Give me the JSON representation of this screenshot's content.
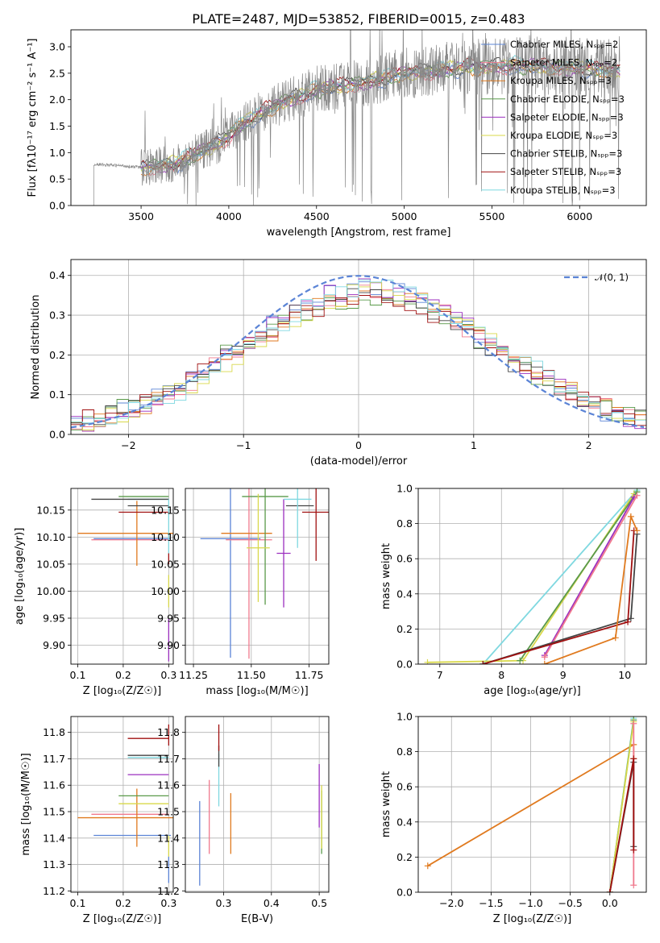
{
  "colors": {
    "chabrier_miles": "#5b84d6",
    "salpeter_miles": "#f07a8e",
    "kroupa_miles": "#e07a1f",
    "chabrier_elodie": "#5a9a4a",
    "salpeter_elodie": "#9b2fbf",
    "kroupa_elodie": "#d8d84a",
    "chabrier_stelib": "#444444",
    "salpeter_stelib": "#a01010",
    "kroupa_stelib": "#7fd8e0",
    "data": "#888888",
    "normal": "#5b84d6"
  },
  "chart_data": [
    {
      "id": "spectrum",
      "type": "line",
      "title": "PLATE=2487, MJD=53852, FIBERID=0015, z=0.483",
      "xlabel": "wavelength [Angstrom, rest frame]",
      "ylabel": "Flux [fλ10⁻¹⁷ erg cm⁻² s⁻¹ A⁻¹]",
      "xlim": [
        3100,
        6380
      ],
      "ylim": [
        0,
        3.32
      ],
      "xticks": [
        "3500",
        "4000",
        "4500",
        "5000",
        "5500",
        "6000"
      ],
      "yticks": [
        "0.0",
        "0.5",
        "1.0",
        "1.5",
        "2.0",
        "2.5",
        "3.0"
      ],
      "legend_position": "top-right",
      "legend": [
        {
          "label": "Chabrier MILES, Nₛₚₚ=2",
          "color": "chabrier_miles"
        },
        {
          "label": "Salpeter MILES, Nₛₚₚ=2",
          "color": "salpeter_miles"
        },
        {
          "label": "Kroupa MILES, Nₛₚₚ=3",
          "color": "kroupa_miles"
        },
        {
          "label": "Chabrier ELODIE, Nₛₚₚ=3",
          "color": "chabrier_elodie"
        },
        {
          "label": "Salpeter ELODIE, Nₛₚₚ=3",
          "color": "salpeter_elodie"
        },
        {
          "label": "Kroupa ELODIE, Nₛₚₚ=3",
          "color": "kroupa_elodie"
        },
        {
          "label": "Chabrier STELIB, Nₛₚₚ=3",
          "color": "chabrier_stelib"
        },
        {
          "label": "Salpeter STELIB, Nₛₚₚ=3",
          "color": "salpeter_stelib"
        },
        {
          "label": "Kroupa STELIB, Nₛₚₚ=3",
          "color": "kroupa_stelib"
        }
      ],
      "data_start": 3230,
      "data_end": 6230,
      "model_start": 3500,
      "model_end": 6230,
      "continuum": [
        [
          3230,
          0.78
        ],
        [
          3400,
          0.75
        ],
        [
          3500,
          0.72
        ],
        [
          3700,
          0.8
        ],
        [
          3950,
          1.2
        ],
        [
          4100,
          1.6
        ],
        [
          4300,
          1.95
        ],
        [
          4500,
          2.2
        ],
        [
          4800,
          2.35
        ],
        [
          5000,
          2.5
        ],
        [
          5300,
          2.6
        ],
        [
          5600,
          2.65
        ],
        [
          5900,
          2.62
        ],
        [
          6230,
          2.55
        ]
      ]
    },
    {
      "id": "residuals",
      "type": "histogram",
      "xlabel": "(data-model)/error",
      "ylabel": "Normed distribution",
      "xlim": [
        -2.5,
        2.5
      ],
      "ylim": [
        0,
        0.44
      ],
      "xticks": [
        -2,
        -1,
        0,
        1,
        2
      ],
      "xtick_labels": [
        "−2",
        "−1",
        "0",
        "1",
        "2"
      ],
      "yticks": [
        "0.0",
        "0.1",
        "0.2",
        "0.3",
        "0.4"
      ],
      "grid": true,
      "legend_position": "top-right",
      "normal_label": "𝒩(0, 1)",
      "bin_width": 0.1
    },
    {
      "id": "age_vs_Z",
      "type": "errorbar",
      "xlabel": "Z [log₁₀(Z/Z☉)]",
      "ylabel": "age  [log₁₀(age/yr)]",
      "xlim": [
        0.085,
        0.31
      ],
      "ylim": [
        9.865,
        10.19
      ],
      "xticks": [
        0.1,
        0.2,
        0.3
      ],
      "xtick_labels": [
        "0.1",
        "0.2",
        "0.3"
      ],
      "yticks": [
        9.9,
        9.95,
        10.0,
        10.05,
        10.1,
        10.15
      ],
      "ytick_labels": [
        "9.90",
        "9.95",
        "10.00",
        "10.05",
        "10.10",
        "10.15"
      ],
      "grid": true,
      "points": [
        {
          "c": "chabrier_miles",
          "x": 0.22,
          "xe": 0.085,
          "y": 10.097,
          "ye": 0.0
        },
        {
          "c": "salpeter_miles",
          "x": 0.215,
          "xe": 0.085,
          "y": 10.095,
          "ye": 0.0
        },
        {
          "c": "kroupa_miles",
          "x": 0.23,
          "xe": 0.13,
          "y": 10.107,
          "ye": 0.06
        },
        {
          "c": "chabrier_elodie",
          "x": 0.245,
          "xe": 0.055,
          "y": 10.175,
          "ye": 0.0
        },
        {
          "c": "salpeter_elodie",
          "x": 0.3,
          "xe": 0.0,
          "y": 9.91,
          "ye": 0.04
        },
        {
          "c": "kroupa_elodie",
          "x": 0.3,
          "xe": 0.0,
          "y": 10.0,
          "ye": 0.03
        },
        {
          "c": "chabrier_stelib",
          "x": 0.255,
          "xe": 0.045,
          "y": 10.158,
          "ye": 0.0
        },
        {
          "c": "salpeter_stelib",
          "x": 0.245,
          "xe": 0.055,
          "y": 10.146,
          "ye": 0.0
        },
        {
          "c": "kroupa_stelib",
          "x": 0.255,
          "xe": 0.045,
          "y": 10.17,
          "ye": 0.0
        },
        {
          "c": "chabrier_stelib",
          "x": 0.215,
          "xe": 0.085,
          "y": 10.17,
          "ye": 0.0
        },
        {
          "c": "salpeter_stelib",
          "x": 0.3,
          "xe": 0.0,
          "y": 10.06,
          "ye": 0.01
        },
        {
          "c": "kroupa_stelib",
          "x": 0.3,
          "xe": 0.0,
          "y": 10.12,
          "ye": 0.05
        }
      ]
    },
    {
      "id": "age_vs_mass",
      "type": "errorbar",
      "xlabel": "mass [log₁₀(M/M☉)]",
      "ylabel": "",
      "xlim": [
        11.215,
        11.835
      ],
      "ylim": [
        9.865,
        10.19
      ],
      "xticks": [
        11.25,
        11.5,
        11.75
      ],
      "xtick_labels": [
        "11.25",
        "11.50",
        "11.75"
      ],
      "yticks": [
        9.9,
        9.95,
        10.0,
        10.05,
        10.1,
        10.15
      ],
      "ytick_labels": [
        "9.90",
        "9.95",
        "10.00",
        "10.05",
        "10.10",
        "10.15"
      ],
      "grid": true,
      "points": [
        {
          "c": "chabrier_miles",
          "x": 11.41,
          "xe": 0.13,
          "y": 10.097,
          "ye": 0.22
        },
        {
          "c": "salpeter_miles",
          "x": 11.49,
          "xe": 0.1,
          "y": 10.095,
          "ye": 0.22
        },
        {
          "c": "kroupa_miles",
          "x": 11.48,
          "xe": 0.11,
          "y": 10.107,
          "ye": 0.0
        },
        {
          "c": "chabrier_elodie",
          "x": 11.56,
          "xe": 0.1,
          "y": 10.175,
          "ye": 0.2
        },
        {
          "c": "salpeter_elodie",
          "x": 11.64,
          "xe": 0.03,
          "y": 10.07,
          "ye": 0.1
        },
        {
          "c": "kroupa_elodie",
          "x": 11.53,
          "xe": 0.05,
          "y": 10.08,
          "ye": 0.1
        },
        {
          "c": "chabrier_stelib",
          "x": 11.71,
          "xe": 0.06,
          "y": 10.158,
          "ye": 0.0
        },
        {
          "c": "salpeter_stelib",
          "x": 11.78,
          "xe": 0.06,
          "y": 10.146,
          "ye": 0.09
        },
        {
          "c": "kroupa_stelib",
          "x": 11.7,
          "xe": 0.06,
          "y": 10.17,
          "ye": 0.09
        }
      ]
    },
    {
      "id": "weight_vs_age",
      "type": "line",
      "xlabel": "age  [log₁₀(age/yr)]",
      "ylabel": "mass weight",
      "xlim": [
        6.65,
        10.35
      ],
      "ylim": [
        0,
        1.0
      ],
      "xticks": [
        7,
        8,
        9,
        10
      ],
      "xtick_labels": [
        "7",
        "8",
        "9",
        "10"
      ],
      "yticks": [
        0,
        0.2,
        0.4,
        0.6,
        0.8,
        1.0
      ],
      "ytick_labels": [
        "0.0",
        "0.2",
        "0.4",
        "0.6",
        "0.8",
        "1.0"
      ],
      "grid": true,
      "series": [
        {
          "c": "kroupa_stelib",
          "x": [
            7.7,
            10.2
          ],
          "y": [
            0.0,
            0.99
          ]
        },
        {
          "c": "kroupa_elodie",
          "x": [
            6.8,
            8.35,
            10.15
          ],
          "y": [
            0.01,
            0.02,
            0.97
          ]
        },
        {
          "c": "chabrier_elodie",
          "x": [
            8.3,
            10.2
          ],
          "y": [
            0.02,
            0.98
          ]
        },
        {
          "c": "salpeter_elodie",
          "x": [
            8.7,
            10.15
          ],
          "y": [
            0.05,
            0.95
          ]
        },
        {
          "c": "salpeter_miles",
          "x": [
            8.7,
            10.2
          ],
          "y": [
            0.04,
            0.96
          ]
        },
        {
          "c": "chabrier_stelib",
          "x": [
            7.7,
            10.1,
            10.2
          ],
          "y": [
            0.0,
            0.26,
            0.74
          ]
        },
        {
          "c": "salpeter_stelib",
          "x": [
            7.7,
            10.05,
            10.15
          ],
          "y": [
            0.0,
            0.24,
            0.76
          ]
        },
        {
          "c": "kroupa_miles",
          "x": [
            8.7,
            9.85,
            10.1,
            10.2
          ],
          "y": [
            0.0,
            0.15,
            0.84,
            0.76
          ]
        }
      ]
    },
    {
      "id": "mass_vs_Z",
      "type": "errorbar",
      "xlabel": "Z [log₁₀(Z/Z☉)]",
      "ylabel": "mass [log₁₀(M/M☉)]",
      "xlim": [
        0.085,
        0.31
      ],
      "ylim": [
        11.195,
        11.86
      ],
      "xticks": [
        0.1,
        0.2,
        0.3
      ],
      "xtick_labels": [
        "0.1",
        "0.2",
        "0.3"
      ],
      "yticks": [
        11.2,
        11.3,
        11.4,
        11.5,
        11.6,
        11.7,
        11.8
      ],
      "ytick_labels": [
        "11.2",
        "11.3",
        "11.4",
        "11.5",
        "11.6",
        "11.7",
        "11.8"
      ],
      "grid": true,
      "points": [
        {
          "c": "chabrier_miles",
          "x": 0.22,
          "xe": 0.085,
          "y": 11.41,
          "ye": 0.0
        },
        {
          "c": "salpeter_miles",
          "x": 0.215,
          "xe": 0.085,
          "y": 11.49,
          "ye": 0.0
        },
        {
          "c": "kroupa_miles",
          "x": 0.23,
          "xe": 0.13,
          "y": 11.477,
          "ye": 0.11
        },
        {
          "c": "chabrier_elodie",
          "x": 0.245,
          "xe": 0.055,
          "y": 11.56,
          "ye": 0.0
        },
        {
          "c": "salpeter_elodie",
          "x": 0.255,
          "xe": 0.045,
          "y": 11.64,
          "ye": 0.0
        },
        {
          "c": "kroupa_elodie",
          "x": 0.245,
          "xe": 0.055,
          "y": 11.53,
          "ye": 0.0
        },
        {
          "c": "chabrier_stelib",
          "x": 0.255,
          "xe": 0.045,
          "y": 11.713,
          "ye": 0.0
        },
        {
          "c": "salpeter_stelib",
          "x": 0.255,
          "xe": 0.045,
          "y": 11.777,
          "ye": 0.0
        },
        {
          "c": "kroupa_stelib",
          "x": 0.255,
          "xe": 0.045,
          "y": 11.705,
          "ye": 0.0
        },
        {
          "c": "salpeter_stelib",
          "x": 0.3,
          "xe": 0.0,
          "y": 11.79,
          "ye": 0.04
        },
        {
          "c": "chabrier_miles",
          "x": 0.3,
          "xe": 0.0,
          "y": 11.28,
          "ye": 0.05
        },
        {
          "c": "kroupa_elodie",
          "x": 0.3,
          "xe": 0.0,
          "y": 11.37,
          "ye": 0.04
        }
      ]
    },
    {
      "id": "mass_vs_EBV",
      "type": "errorbar",
      "xlabel": "E(B-V)",
      "ylabel": "",
      "xlim": [
        0.22,
        0.52
      ],
      "ylim": [
        11.195,
        11.86
      ],
      "xticks": [
        0.3,
        0.4,
        0.5
      ],
      "xtick_labels": [
        "0.3",
        "0.4",
        "0.5"
      ],
      "yticks": [
        11.2,
        11.3,
        11.4,
        11.5,
        11.6,
        11.7,
        11.8
      ],
      "ytick_labels": [
        "11.2",
        "11.3",
        "11.4",
        "11.5",
        "11.6",
        "11.7",
        "11.8"
      ],
      "grid": true,
      "points": [
        {
          "c": "chabrier_miles",
          "x": 0.25,
          "xe": 0.0,
          "y": 11.38,
          "ye": 0.16
        },
        {
          "c": "salpeter_miles",
          "x": 0.27,
          "xe": 0.0,
          "y": 11.48,
          "ye": 0.14
        },
        {
          "c": "kroupa_miles",
          "x": 0.315,
          "xe": 0.0,
          "y": 11.455,
          "ye": 0.115
        },
        {
          "c": "kroupa_stelib",
          "x": 0.29,
          "xe": 0.0,
          "y": 11.62,
          "ye": 0.1
        },
        {
          "c": "chabrier_stelib",
          "x": 0.29,
          "xe": 0.0,
          "y": 11.71,
          "ye": 0.04
        },
        {
          "c": "salpeter_stelib",
          "x": 0.29,
          "xe": 0.0,
          "y": 11.78,
          "ye": 0.05
        },
        {
          "c": "salpeter_elodie",
          "x": 0.5,
          "xe": 0.0,
          "y": 11.56,
          "ye": 0.12
        },
        {
          "c": "chabrier_elodie",
          "x": 0.505,
          "xe": 0.0,
          "y": 11.46,
          "ye": 0.12
        },
        {
          "c": "kroupa_elodie",
          "x": 0.505,
          "xe": 0.0,
          "y": 11.48,
          "ye": 0.12
        }
      ]
    },
    {
      "id": "weight_vs_Z",
      "type": "line",
      "xlabel": "Z [log₁₀(Z/Z☉)]",
      "ylabel": "mass weight",
      "xlim": [
        -2.42,
        0.46
      ],
      "ylim": [
        0,
        1.0
      ],
      "xticks": [
        -2.0,
        -1.5,
        -1.0,
        -0.5,
        0.0
      ],
      "xtick_labels": [
        "−2.0",
        "−1.5",
        "−1.0",
        "−0.5",
        "0.0"
      ],
      "yticks": [
        0,
        0.2,
        0.4,
        0.6,
        0.8,
        1.0
      ],
      "ytick_labels": [
        "0.0",
        "0.2",
        "0.4",
        "0.6",
        "0.8",
        "1.0"
      ],
      "grid": true,
      "series": [
        {
          "c": "kroupa_miles",
          "x": [
            -2.3,
            0.3,
            0.3
          ],
          "y": [
            0.15,
            0.84,
            0.76
          ]
        },
        {
          "c": "kroupa_stelib",
          "x": [
            0.0,
            0.3
          ],
          "y": [
            0.0,
            0.99
          ]
        },
        {
          "c": "chabrier_elodie",
          "x": [
            0.0,
            0.3
          ],
          "y": [
            0.0,
            0.98
          ]
        },
        {
          "c": "kroupa_elodie",
          "x": [
            0.0,
            0.3
          ],
          "y": [
            0.0,
            0.97
          ]
        },
        {
          "c": "salpeter_miles",
          "x": [
            0.3,
            0.3
          ],
          "y": [
            0.04,
            0.96
          ]
        },
        {
          "c": "chabrier_stelib",
          "x": [
            0.0,
            0.3,
            0.3
          ],
          "y": [
            0.0,
            0.74,
            0.26
          ]
        },
        {
          "c": "salpeter_stelib",
          "x": [
            0.0,
            0.3,
            0.3
          ],
          "y": [
            0.0,
            0.76,
            0.24
          ]
        }
      ]
    }
  ]
}
